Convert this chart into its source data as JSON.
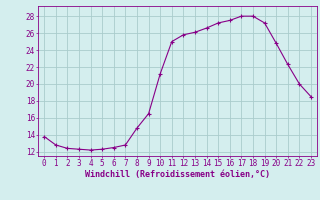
{
  "x": [
    0,
    1,
    2,
    3,
    4,
    5,
    6,
    7,
    8,
    9,
    10,
    11,
    12,
    13,
    14,
    15,
    16,
    17,
    18,
    19,
    20,
    21,
    22,
    23
  ],
  "y": [
    13.8,
    12.8,
    12.4,
    12.3,
    12.2,
    12.3,
    12.5,
    12.8,
    14.8,
    16.5,
    21.2,
    25.0,
    25.8,
    26.1,
    26.6,
    27.2,
    27.5,
    28.0,
    28.0,
    27.2,
    24.8,
    22.3,
    20.0,
    18.5
  ],
  "line_color": "#880088",
  "marker": "P",
  "marker_size": 2.5,
  "bg_color": "#d4eeee",
  "grid_color": "#aacccc",
  "xlabel": "Windchill (Refroidissement éolien,°C)",
  "xlabel_color": "#880088",
  "ylabel_ticks": [
    12,
    14,
    16,
    18,
    20,
    22,
    24,
    26,
    28
  ],
  "xlim": [
    -0.5,
    23.5
  ],
  "ylim": [
    11.5,
    29.2
  ],
  "tick_color": "#880088",
  "tick_label_color": "#880088",
  "font_size": 5.5,
  "xlabel_font_size": 6.0
}
